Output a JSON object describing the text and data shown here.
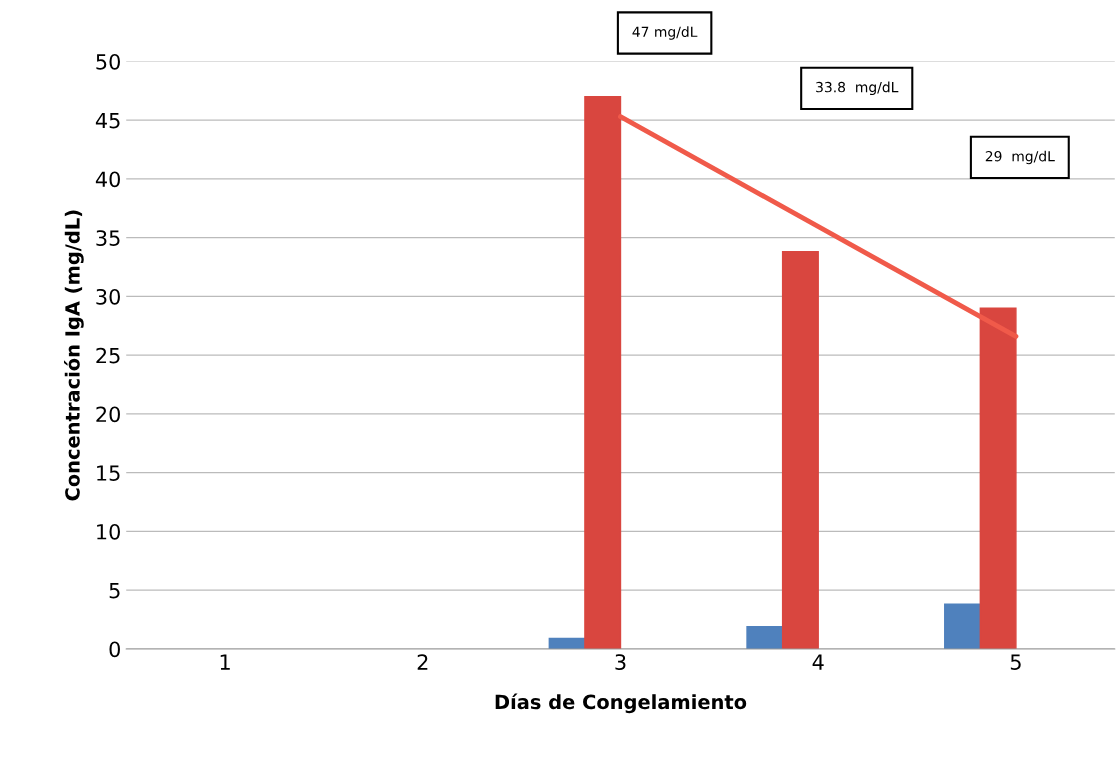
{
  "chart_data": {
    "type": "bar",
    "xlabel": "Días de Congelamiento",
    "ylabel": "Concentración IgA (mg/dL)",
    "categories": [
      "1",
      "2",
      "3",
      "4",
      "5"
    ],
    "series": [
      {
        "color": "#4f81bd",
        "values": [
          null,
          null,
          0.9,
          1.9,
          3.8
        ]
      },
      {
        "color": "#d9463f",
        "values": [
          null,
          null,
          47,
          33.8,
          29
        ]
      },
      {
        "type": "line",
        "color": "#f05a4a",
        "x": [
          "3",
          "5"
        ],
        "values": [
          45.3,
          26.6
        ]
      }
    ],
    "ylim": [
      0,
      50
    ],
    "yticks": [
      0,
      5,
      10,
      15,
      20,
      25,
      30,
      35,
      40,
      45,
      50
    ],
    "grid": "y",
    "legend": false,
    "annotations": [
      "47 mg/dL",
      "33.8  mg/dL",
      "29  mg/dL"
    ]
  }
}
